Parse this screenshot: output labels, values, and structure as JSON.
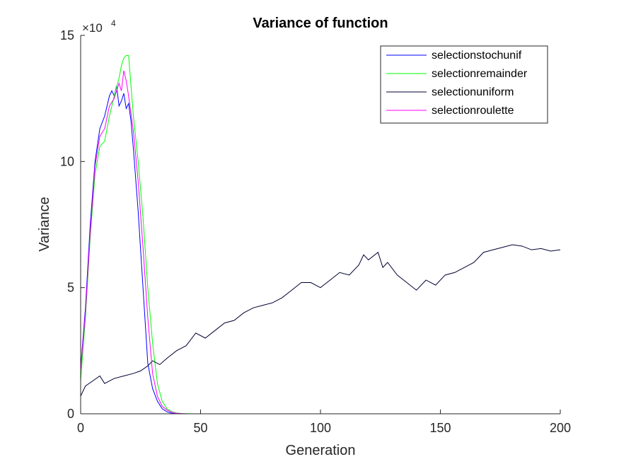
{
  "chart_data": {
    "type": "line",
    "title": "Variance of function",
    "xlabel": "Generation",
    "ylabel": "Variance",
    "xlim": [
      0,
      200
    ],
    "ylim": [
      0,
      150000
    ],
    "xticks": [
      0,
      50,
      100,
      150,
      200
    ],
    "yticks": [
      0,
      50000,
      100000,
      150000
    ],
    "x_tick_labels": [
      "0",
      "50",
      "100",
      "150",
      "200"
    ],
    "y_tick_labels": [
      "0",
      "5",
      "10",
      "15"
    ],
    "y_exponent": {
      "base": "×10",
      "power": "4"
    },
    "grid": false,
    "legend_position": "top-right",
    "series": [
      {
        "name": "selectionstochunif",
        "color": "#0000ff",
        "points": [
          [
            0,
            18000
          ],
          [
            2,
            42000
          ],
          [
            4,
            75000
          ],
          [
            6,
            100000
          ],
          [
            8,
            113000
          ],
          [
            10,
            118000
          ],
          [
            12,
            126000
          ],
          [
            13,
            128000
          ],
          [
            14,
            126000
          ],
          [
            15,
            130000
          ],
          [
            16,
            122000
          ],
          [
            17,
            124000
          ],
          [
            18,
            127000
          ],
          [
            19,
            121000
          ],
          [
            20,
            123000
          ],
          [
            21,
            116000
          ],
          [
            22,
            105000
          ],
          [
            24,
            80000
          ],
          [
            26,
            50000
          ],
          [
            28,
            20000
          ],
          [
            30,
            10000
          ],
          [
            32,
            5000
          ],
          [
            34,
            2000
          ],
          [
            36,
            800
          ],
          [
            38,
            200
          ],
          [
            40,
            0
          ]
        ]
      },
      {
        "name": "selectionremainder",
        "color": "#00ff00",
        "points": [
          [
            0,
            13000
          ],
          [
            2,
            38000
          ],
          [
            4,
            70000
          ],
          [
            6,
            95000
          ],
          [
            8,
            106000
          ],
          [
            10,
            108000
          ],
          [
            12,
            118000
          ],
          [
            14,
            126000
          ],
          [
            16,
            133000
          ],
          [
            17,
            138000
          ],
          [
            18,
            141000
          ],
          [
            19,
            142000
          ],
          [
            20,
            142000
          ],
          [
            21,
            130000
          ],
          [
            22,
            118000
          ],
          [
            24,
            100000
          ],
          [
            26,
            78000
          ],
          [
            28,
            50000
          ],
          [
            30,
            28000
          ],
          [
            32,
            12000
          ],
          [
            34,
            5000
          ],
          [
            36,
            2000
          ],
          [
            38,
            800
          ],
          [
            40,
            300
          ],
          [
            42,
            100
          ],
          [
            46,
            0
          ]
        ]
      },
      {
        "name": "selectionuniform",
        "color": "#000033",
        "points": [
          [
            0,
            7000
          ],
          [
            2,
            11000
          ],
          [
            5,
            13000
          ],
          [
            8,
            15000
          ],
          [
            10,
            12000
          ],
          [
            14,
            14000
          ],
          [
            18,
            15000
          ],
          [
            22,
            16000
          ],
          [
            25,
            17000
          ],
          [
            28,
            19000
          ],
          [
            30,
            21000
          ],
          [
            33,
            19500
          ],
          [
            36,
            22000
          ],
          [
            40,
            25000
          ],
          [
            44,
            27000
          ],
          [
            48,
            32000
          ],
          [
            52,
            30000
          ],
          [
            56,
            33000
          ],
          [
            60,
            36000
          ],
          [
            64,
            37000
          ],
          [
            68,
            40000
          ],
          [
            72,
            42000
          ],
          [
            76,
            43000
          ],
          [
            80,
            44000
          ],
          [
            84,
            46000
          ],
          [
            88,
            49000
          ],
          [
            92,
            52000
          ],
          [
            96,
            52000
          ],
          [
            100,
            50000
          ],
          [
            104,
            53000
          ],
          [
            108,
            56000
          ],
          [
            112,
            55000
          ],
          [
            116,
            59000
          ],
          [
            118,
            63000
          ],
          [
            120,
            61000
          ],
          [
            124,
            64000
          ],
          [
            126,
            58000
          ],
          [
            128,
            60000
          ],
          [
            132,
            55000
          ],
          [
            136,
            52000
          ],
          [
            140,
            49000
          ],
          [
            144,
            53000
          ],
          [
            148,
            51000
          ],
          [
            152,
            55000
          ],
          [
            156,
            56000
          ],
          [
            160,
            58000
          ],
          [
            164,
            60000
          ],
          [
            168,
            64000
          ],
          [
            172,
            65000
          ],
          [
            176,
            66000
          ],
          [
            180,
            67000
          ],
          [
            184,
            66500
          ],
          [
            188,
            65000
          ],
          [
            192,
            65500
          ],
          [
            196,
            64500
          ],
          [
            200,
            65000
          ]
        ]
      },
      {
        "name": "selectionroulette",
        "color": "#ff00ff",
        "points": [
          [
            0,
            17000
          ],
          [
            2,
            40000
          ],
          [
            4,
            72000
          ],
          [
            6,
            98000
          ],
          [
            8,
            110000
          ],
          [
            10,
            113000
          ],
          [
            12,
            122000
          ],
          [
            14,
            125000
          ],
          [
            16,
            131000
          ],
          [
            17,
            128000
          ],
          [
            18,
            136000
          ],
          [
            19,
            132000
          ],
          [
            20,
            126000
          ],
          [
            22,
            112000
          ],
          [
            24,
            92000
          ],
          [
            26,
            66000
          ],
          [
            28,
            38000
          ],
          [
            30,
            16000
          ],
          [
            32,
            7000
          ],
          [
            34,
            3000
          ],
          [
            36,
            1500
          ],
          [
            38,
            600
          ],
          [
            40,
            200
          ],
          [
            44,
            0
          ],
          [
            50,
            0
          ],
          [
            60,
            0
          ],
          [
            70,
            0
          ],
          [
            76,
            0
          ]
        ]
      }
    ]
  }
}
